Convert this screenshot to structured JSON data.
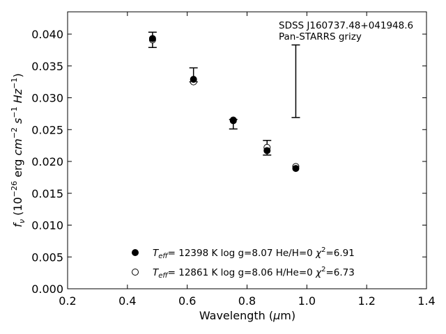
{
  "chart_data": {
    "type": "scatter",
    "xlabel": "Wavelength (μm)",
    "ylabel": "f_ν (10^-26 erg cm^-2 s^-1 Hz^-1)",
    "xlim": [
      0.2,
      1.4
    ],
    "ylim": [
      0.0,
      0.0435
    ],
    "x_ticks": [
      "0.2",
      "0.4",
      "0.6",
      "0.8",
      "1.0",
      "1.2",
      "1.4"
    ],
    "y_ticks": [
      "0.000",
      "0.005",
      "0.010",
      "0.015",
      "0.020",
      "0.025",
      "0.030",
      "0.035",
      "0.040"
    ],
    "x_tick_values": [
      0.2,
      0.4,
      0.6,
      0.8,
      1.0,
      1.2,
      1.4
    ],
    "y_tick_values": [
      0.0,
      0.005,
      0.01,
      0.015,
      0.02,
      0.025,
      0.03,
      0.035,
      0.04
    ],
    "grid": false,
    "legend_position": "lower-center",
    "annotation_lines": [
      "SDSS J160737.48+041948.6",
      "Pan-STARRS grizy"
    ],
    "observed": {
      "x": [
        0.484,
        0.621,
        0.754,
        0.867,
        0.963
      ],
      "y": [
        0.0392,
        0.0328,
        0.0262,
        0.0222,
        0.0327
      ],
      "err_low": [
        0.0379,
        0.0325,
        0.0251,
        0.021,
        0.0269
      ],
      "err_high": [
        0.0403,
        0.0347,
        0.0266,
        0.0233,
        0.0383
      ]
    },
    "series": [
      {
        "name": "T_eff= 12398 K  log g=8.07  He/H=0  χ²=6.91",
        "marker": "filled-circle",
        "x": [
          0.484,
          0.621,
          0.754,
          0.867,
          0.963
        ],
        "y": [
          0.0393,
          0.0329,
          0.0264,
          0.0217,
          0.0189
        ]
      },
      {
        "name": "T_eff= 12861 K  log g=8.06  H/He=0  χ²=6.73",
        "marker": "open-circle",
        "x": [
          0.484,
          0.621,
          0.754,
          0.867,
          0.963
        ],
        "y": [
          0.0391,
          0.0325,
          0.0265,
          0.0222,
          0.0192
        ]
      }
    ]
  }
}
